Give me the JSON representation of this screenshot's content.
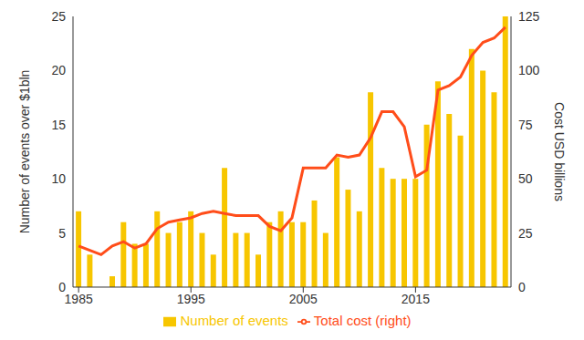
{
  "chart_data": {
    "type": "bar",
    "x": [
      1985,
      1986,
      1987,
      1988,
      1989,
      1990,
      1991,
      1992,
      1993,
      1994,
      1995,
      1996,
      1997,
      1998,
      1999,
      2000,
      2001,
      2002,
      2003,
      2004,
      2005,
      2006,
      2007,
      2008,
      2009,
      2010,
      2011,
      2012,
      2013,
      2014,
      2015,
      2016,
      2017,
      2018,
      2019,
      2020,
      2021,
      2022,
      2023
    ],
    "xlim": [
      1984.5,
      2023.5
    ],
    "xticks": [
      1985,
      1995,
      2005,
      2015
    ],
    "ylabel": "Number of events over $1bln",
    "ylim": [
      0,
      25
    ],
    "yticks": [
      0,
      5,
      10,
      15,
      20,
      25
    ],
    "y2label": "Cost USD billions",
    "y2lim": [
      0,
      125
    ],
    "y2ticks": [
      0,
      25,
      50,
      75,
      100,
      125
    ],
    "legend": "bottom",
    "grid": false,
    "series": [
      {
        "name": "Number of events",
        "type": "bar",
        "color": "#f7c600",
        "values": [
          7,
          3,
          0,
          1,
          6,
          4,
          4,
          7,
          5,
          6,
          7,
          5,
          3,
          11,
          5,
          5,
          3,
          6,
          7,
          6,
          6,
          8,
          5,
          12,
          9,
          7,
          18,
          11,
          10,
          10,
          10,
          15,
          19,
          16,
          14,
          22,
          20,
          18,
          25
        ]
      },
      {
        "name": "Total cost (right)",
        "type": "line",
        "axis": "y2",
        "color": "#ff4d1a",
        "values": [
          19,
          17,
          15,
          19,
          21,
          18,
          20,
          27,
          30,
          31,
          32,
          34,
          35,
          34,
          33,
          33,
          33,
          28,
          26,
          32,
          55,
          55,
          55,
          61,
          60,
          61,
          69,
          81,
          81,
          74,
          51,
          54,
          91,
          93,
          97,
          107,
          113,
          115,
          120
        ]
      }
    ]
  }
}
